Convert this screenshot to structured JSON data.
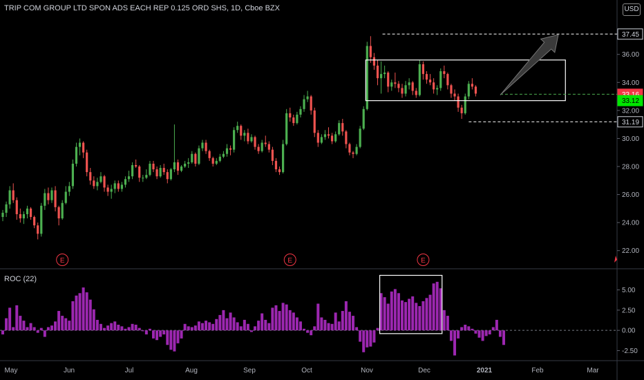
{
  "header": {
    "title": "TRIP COM GROUP LTD SPON ADS EACH REP 0.125 ORD SHS, 1D, Cboe BZX",
    "currency": "USD",
    "roc_label": "ROC (22)"
  },
  "colors": {
    "up": "#26a69a",
    "up_bright": "#4caf50",
    "down": "#ef5350",
    "roc": "#9c27b0",
    "earnings": "#f23645",
    "box": "#ffffff",
    "last_price_bg": "#f23645",
    "bid_bg": "#00e600"
  },
  "chart_data": [
    {
      "type": "candlestick",
      "ylim": [
        21,
        38.5
      ],
      "y_ticks": [
        "22.00",
        "24.00",
        "26.00",
        "28.00",
        "30.00",
        "32.00",
        "34.00",
        "36.00"
      ],
      "x_ticks": [
        "May",
        "Jun",
        "Jul",
        "Aug",
        "Sep",
        "Oct",
        "Nov",
        "Dec",
        "2021",
        "Feb",
        "Mar"
      ],
      "earnings_markers": [
        "E",
        "E",
        "E"
      ],
      "price_tags": [
        {
          "label": "37.45",
          "value": 37.45,
          "style": "outline"
        },
        {
          "label": "33.16",
          "value": 33.16,
          "style": "red"
        },
        {
          "label": "33.12",
          "value": 32.7,
          "style": "green"
        },
        {
          "label": "31.19",
          "value": 31.19,
          "style": "outline"
        }
      ],
      "candles": [
        [
          24.4,
          24.9,
          24.1,
          24.7
        ],
        [
          24.7,
          25.5,
          24.4,
          25.3
        ],
        [
          25.3,
          26.6,
          25.0,
          26.3
        ],
        [
          26.3,
          26.8,
          25.4,
          25.6
        ],
        [
          25.6,
          25.8,
          24.2,
          24.6
        ],
        [
          24.6,
          25.0,
          24.0,
          24.3
        ],
        [
          24.3,
          24.8,
          23.9,
          24.6
        ],
        [
          24.6,
          25.2,
          24.3,
          25.0
        ],
        [
          25.0,
          25.1,
          24.2,
          24.4
        ],
        [
          24.4,
          24.5,
          23.6,
          23.8
        ],
        [
          23.8,
          24.0,
          22.8,
          23.2
        ],
        [
          23.2,
          25.4,
          23.0,
          25.2
        ],
        [
          25.2,
          26.4,
          24.9,
          26.1
        ],
        [
          26.1,
          26.5,
          25.3,
          25.6
        ],
        [
          25.6,
          26.5,
          25.4,
          26.3
        ],
        [
          26.3,
          26.6,
          24.8,
          25.1
        ],
        [
          25.1,
          25.2,
          23.8,
          24.3
        ],
        [
          24.3,
          25.6,
          24.2,
          25.4
        ],
        [
          25.4,
          26.6,
          25.3,
          26.2
        ],
        [
          26.2,
          26.9,
          25.9,
          26.6
        ],
        [
          26.6,
          28.5,
          26.4,
          28.2
        ],
        [
          28.2,
          29.7,
          28.0,
          29.4
        ],
        [
          29.4,
          30.0,
          28.8,
          29.7
        ],
        [
          29.7,
          29.8,
          28.6,
          29.0
        ],
        [
          29.0,
          29.2,
          27.3,
          27.6
        ],
        [
          27.6,
          27.9,
          26.7,
          27.0
        ],
        [
          27.0,
          27.3,
          26.4,
          26.6
        ],
        [
          26.6,
          27.2,
          26.3,
          26.9
        ],
        [
          26.9,
          27.6,
          26.8,
          27.3
        ],
        [
          27.3,
          27.4,
          26.2,
          26.5
        ],
        [
          26.5,
          26.7,
          25.9,
          26.2
        ],
        [
          26.2,
          26.7,
          25.7,
          26.4
        ],
        [
          26.4,
          27.0,
          26.1,
          26.8
        ],
        [
          26.8,
          27.0,
          26.2,
          26.4
        ],
        [
          26.4,
          26.9,
          26.2,
          26.7
        ],
        [
          26.7,
          27.3,
          26.5,
          27.1
        ],
        [
          27.1,
          27.7,
          26.9,
          27.3
        ],
        [
          27.3,
          28.3,
          27.1,
          28.1
        ],
        [
          28.1,
          28.5,
          27.9,
          28.0
        ],
        [
          28.0,
          28.1,
          26.9,
          27.2
        ],
        [
          27.2,
          27.4,
          26.9,
          27.2
        ],
        [
          27.2,
          27.8,
          27.1,
          27.4
        ],
        [
          27.4,
          28.4,
          27.3,
          28.2
        ],
        [
          28.2,
          28.4,
          27.6,
          27.8
        ],
        [
          27.8,
          28.0,
          27.1,
          27.3
        ],
        [
          27.3,
          28.1,
          27.2,
          27.9
        ],
        [
          27.9,
          28.2,
          27.4,
          27.6
        ],
        [
          27.6,
          27.8,
          26.8,
          27.1
        ],
        [
          27.1,
          27.9,
          27.0,
          27.8
        ],
        [
          27.8,
          31.0,
          27.6,
          28.3
        ],
        [
          28.3,
          28.5,
          27.4,
          27.7
        ],
        [
          27.7,
          28.1,
          27.6,
          28.0
        ],
        [
          28.0,
          28.4,
          27.9,
          28.2
        ],
        [
          28.2,
          28.6,
          27.9,
          28.3
        ],
        [
          28.3,
          29.1,
          28.2,
          28.9
        ],
        [
          28.9,
          29.0,
          28.0,
          28.2
        ],
        [
          28.2,
          29.5,
          28.1,
          29.3
        ],
        [
          29.3,
          29.9,
          29.1,
          29.7
        ],
        [
          29.7,
          29.9,
          28.9,
          29.1
        ],
        [
          29.1,
          29.2,
          28.4,
          28.6
        ],
        [
          28.6,
          28.7,
          28.0,
          28.2
        ],
        [
          28.2,
          28.6,
          28.1,
          28.4
        ],
        [
          28.4,
          28.9,
          28.3,
          28.7
        ],
        [
          28.7,
          29.1,
          28.6,
          28.9
        ],
        [
          28.9,
          29.6,
          28.7,
          29.3
        ],
        [
          29.3,
          29.5,
          28.8,
          29.2
        ],
        [
          29.2,
          30.8,
          29.0,
          30.6
        ],
        [
          30.6,
          31.2,
          30.4,
          30.9
        ],
        [
          30.9,
          31.0,
          29.9,
          30.2
        ],
        [
          30.2,
          30.6,
          29.8,
          30.4
        ],
        [
          30.4,
          30.7,
          29.6,
          29.8
        ],
        [
          29.8,
          30.3,
          29.7,
          30.1
        ],
        [
          30.1,
          30.2,
          29.2,
          29.4
        ],
        [
          29.4,
          29.6,
          28.9,
          29.1
        ],
        [
          29.1,
          29.9,
          29.0,
          29.7
        ],
        [
          29.7,
          30.2,
          29.4,
          29.6
        ],
        [
          29.6,
          29.8,
          29.0,
          29.2
        ],
        [
          29.2,
          29.4,
          28.1,
          28.4
        ],
        [
          28.4,
          28.6,
          27.6,
          27.8
        ],
        [
          27.8,
          28.0,
          27.4,
          27.6
        ],
        [
          27.6,
          29.9,
          27.5,
          29.6
        ],
        [
          29.6,
          32.1,
          29.5,
          31.8
        ],
        [
          31.8,
          32.2,
          31.2,
          31.5
        ],
        [
          31.5,
          31.7,
          30.9,
          31.1
        ],
        [
          31.1,
          31.9,
          31.0,
          31.7
        ],
        [
          31.7,
          32.3,
          31.5,
          32.1
        ],
        [
          32.1,
          33.1,
          31.9,
          32.8
        ],
        [
          32.8,
          33.4,
          32.6,
          33.0
        ],
        [
          33.0,
          33.1,
          31.7,
          32.0
        ],
        [
          32.0,
          32.2,
          30.1,
          30.4
        ],
        [
          30.4,
          30.6,
          29.4,
          29.7
        ],
        [
          29.7,
          30.3,
          29.6,
          30.1
        ],
        [
          30.1,
          30.6,
          29.9,
          30.3
        ],
        [
          30.3,
          30.8,
          30.0,
          30.2
        ],
        [
          30.2,
          30.4,
          29.6,
          29.8
        ],
        [
          29.8,
          30.5,
          29.7,
          30.3
        ],
        [
          30.3,
          31.3,
          30.2,
          31.1
        ],
        [
          31.1,
          31.4,
          30.2,
          30.5
        ],
        [
          30.5,
          30.6,
          29.3,
          29.6
        ],
        [
          29.6,
          29.7,
          28.8,
          29.0
        ],
        [
          29.0,
          29.1,
          28.6,
          28.9
        ],
        [
          28.9,
          29.6,
          28.8,
          29.4
        ],
        [
          29.4,
          30.9,
          29.3,
          30.7
        ],
        [
          30.7,
          32.3,
          30.6,
          32.1
        ],
        [
          32.1,
          36.9,
          32.0,
          36.6
        ],
        [
          36.6,
          37.3,
          35.4,
          35.8
        ],
        [
          35.8,
          36.1,
          34.9,
          35.2
        ],
        [
          35.2,
          35.6,
          33.8,
          34.3
        ],
        [
          34.3,
          35.5,
          33.2,
          34.6
        ],
        [
          34.6,
          35.2,
          34.3,
          34.7
        ],
        [
          34.7,
          34.8,
          33.3,
          33.7
        ],
        [
          33.7,
          34.2,
          33.4,
          34.0
        ],
        [
          34.0,
          34.7,
          33.6,
          33.9
        ],
        [
          33.9,
          34.1,
          33.3,
          33.6
        ],
        [
          33.6,
          33.9,
          32.9,
          33.2
        ],
        [
          33.2,
          34.1,
          33.0,
          33.8
        ],
        [
          33.8,
          34.3,
          33.5,
          34.0
        ],
        [
          34.0,
          34.1,
          33.1,
          33.4
        ],
        [
          33.4,
          33.6,
          32.9,
          33.1
        ],
        [
          33.1,
          35.6,
          33.0,
          35.3
        ],
        [
          35.3,
          35.5,
          34.2,
          34.6
        ],
        [
          34.6,
          34.8,
          33.9,
          34.2
        ],
        [
          34.2,
          34.6,
          33.8,
          34.0
        ],
        [
          34.0,
          34.3,
          33.2,
          33.5
        ],
        [
          33.5,
          33.8,
          33.1,
          33.6
        ],
        [
          33.6,
          35.0,
          33.4,
          34.8
        ],
        [
          34.8,
          35.2,
          34.3,
          34.6
        ],
        [
          34.6,
          34.7,
          33.5,
          33.8
        ],
        [
          33.8,
          33.9,
          32.9,
          33.2
        ],
        [
          33.2,
          33.5,
          32.7,
          33.0
        ],
        [
          33.0,
          33.2,
          31.9,
          32.2
        ],
        [
          32.2,
          32.4,
          31.4,
          31.8
        ],
        [
          31.8,
          33.2,
          31.7,
          33.0
        ],
        [
          33.0,
          34.1,
          32.8,
          33.9
        ],
        [
          33.9,
          34.3,
          33.5,
          33.7
        ],
        [
          33.7,
          33.8,
          33.0,
          33.2
        ]
      ]
    },
    {
      "type": "bar",
      "title": "ROC (22)",
      "ylim": [
        -3.4,
        7.1
      ],
      "y_ticks": [
        "5.00",
        "2.50",
        "0.00",
        "-2.50"
      ],
      "values": [
        -0.5,
        1.5,
        2.8,
        0.4,
        3.1,
        1.8,
        1.2,
        0.4,
        0.9,
        0.4,
        -0.3,
        0.3,
        -0.8,
        0.4,
        0.6,
        1.1,
        2.4,
        1.8,
        1.5,
        1.2,
        3.6,
        4.3,
        4.6,
        5.3,
        4.7,
        3.8,
        2.6,
        1.3,
        0.8,
        0.3,
        0.6,
        0.9,
        1.1,
        0.7,
        0.5,
        0.2,
        0.4,
        0.8,
        0.7,
        0.3,
        -0.1,
        -0.5,
        0.2,
        -1.0,
        -1.2,
        -0.8,
        -0.5,
        -1.8,
        -2.4,
        -2.6,
        -1.6,
        -1.0,
        0.8,
        0.5,
        0.4,
        0.6,
        1.1,
        0.9,
        1.2,
        1.0,
        0.8,
        1.4,
        1.9,
        2.5,
        1.5,
        2.2,
        1.6,
        1.0,
        0.5,
        1.3,
        0.8,
        -0.2,
        0.5,
        1.2,
        2.1,
        1.3,
        0.9,
        2.8,
        3.1,
        2.4,
        3.4,
        3.2,
        2.5,
        2.2,
        1.6,
        1.1,
        0.2,
        -0.3,
        -0.6,
        0.5,
        3.3,
        1.6,
        1.3,
        0.9,
        0.8,
        2.2,
        1.1,
        2.4,
        3.6,
        2.3,
        1.8,
        0.4,
        -1.4,
        -2.7,
        -2.1,
        -2.0,
        -1.5,
        0.3,
        4.6,
        4.1,
        3.3,
        4.8,
        5.1,
        4.6,
        3.7,
        3.5,
        3.9,
        4.2,
        3.4,
        3.0,
        3.6,
        4.0,
        4.4,
        5.8,
        6.0,
        5.2,
        2.5,
        1.8,
        -1.3,
        -3.1,
        -1.0,
        0.4,
        0.7,
        0.5,
        0.2,
        -0.4,
        -0.9,
        -1.3,
        -0.7,
        -0.5,
        0.4,
        1.3,
        -0.8,
        -1.8
      ]
    }
  ]
}
